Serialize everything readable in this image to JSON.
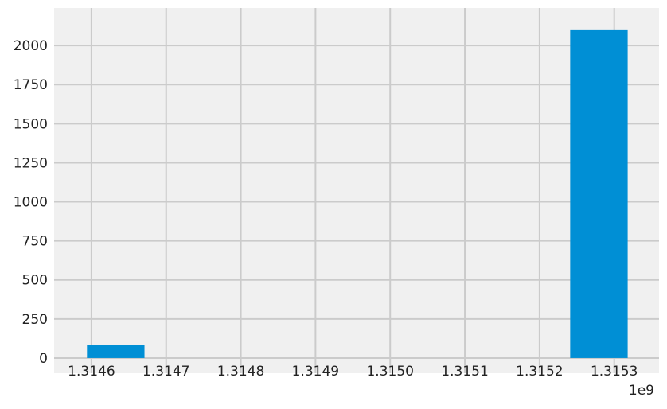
{
  "chart_data": {
    "type": "bar",
    "style": "fivethirtyeight histogram",
    "x_offset_label": "1e9",
    "x_ticks": [
      {
        "value": 1.3146,
        "label": "1.3146"
      },
      {
        "value": 1.3147,
        "label": "1.3147"
      },
      {
        "value": 1.3148,
        "label": "1.3148"
      },
      {
        "value": 1.3149,
        "label": "1.3149"
      },
      {
        "value": 1.315,
        "label": "1.3150"
      },
      {
        "value": 1.3151,
        "label": "1.3151"
      },
      {
        "value": 1.3152,
        "label": "1.3152"
      },
      {
        "value": 1.3153,
        "label": "1.3153"
      }
    ],
    "y_ticks": [
      {
        "value": 0,
        "label": "0"
      },
      {
        "value": 250,
        "label": "250"
      },
      {
        "value": 500,
        "label": "500"
      },
      {
        "value": 750,
        "label": "750"
      },
      {
        "value": 1000,
        "label": "1000"
      },
      {
        "value": 1250,
        "label": "1250"
      },
      {
        "value": 1500,
        "label": "1500"
      },
      {
        "value": 1750,
        "label": "1750"
      },
      {
        "value": 2000,
        "label": "2000"
      }
    ],
    "xlim": [
      1.31455,
      1.31536
    ],
    "ylim": [
      -97,
      2240
    ],
    "bars": [
      {
        "x0": 1.314594,
        "x1": 1.314671,
        "value": 82
      },
      {
        "x0": 1.315241,
        "x1": 1.315318,
        "value": 2098
      }
    ],
    "grid": true,
    "colors": {
      "bar": "#008fd5",
      "background": "#f0f0f0",
      "grid": "#cbcbcb"
    }
  }
}
